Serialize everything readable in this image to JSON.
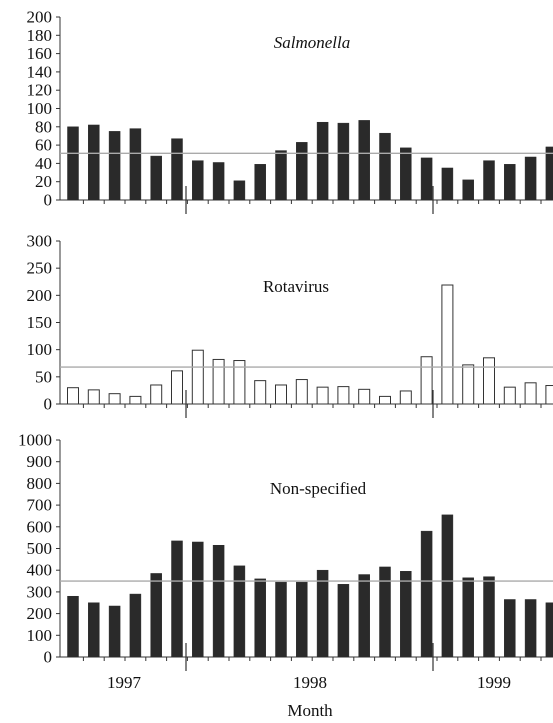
{
  "chart_data": [
    {
      "type": "bar",
      "title": "Salmonella",
      "title_italic": true,
      "ylim": [
        0,
        200
      ],
      "yticks": [
        0,
        20,
        40,
        60,
        80,
        100,
        120,
        140,
        160,
        180,
        200
      ],
      "bar_style": "filled",
      "reference_line": 51,
      "values": [
        80,
        82,
        75,
        78,
        48,
        67,
        43,
        41,
        21,
        39,
        54,
        63,
        85,
        84,
        87,
        73,
        57,
        46,
        35,
        22,
        43,
        39,
        47,
        58
      ]
    },
    {
      "type": "bar",
      "title": "Rotavirus",
      "title_italic": false,
      "ylim": [
        0,
        300
      ],
      "yticks": [
        0,
        50,
        100,
        150,
        200,
        250,
        300
      ],
      "bar_style": "outline",
      "reference_line": 68,
      "values": [
        30,
        26,
        19,
        14,
        35,
        61,
        99,
        82,
        80,
        43,
        35,
        45,
        31,
        32,
        27,
        14,
        24,
        87,
        219,
        72,
        85,
        31,
        39,
        34
      ]
    },
    {
      "type": "bar",
      "title": "Non-specified",
      "title_italic": false,
      "ylim": [
        0,
        1000
      ],
      "yticks": [
        0,
        100,
        200,
        300,
        400,
        500,
        600,
        700,
        800,
        900,
        1000
      ],
      "bar_style": "filled",
      "reference_line": 350,
      "values": [
        280,
        250,
        235,
        290,
        385,
        535,
        530,
        515,
        420,
        360,
        345,
        345,
        400,
        335,
        380,
        415,
        395,
        580,
        655,
        365,
        370,
        265,
        265,
        250
      ]
    }
  ],
  "x_axis": {
    "year_labels": [
      "1997",
      "1998",
      "1999"
    ],
    "xlabel": "Month"
  },
  "colors": {
    "bar_fill": "#2a2a2a",
    "bar_outline": "#333333",
    "reference_line": "#aaaaaa",
    "axis": "#333333"
  }
}
